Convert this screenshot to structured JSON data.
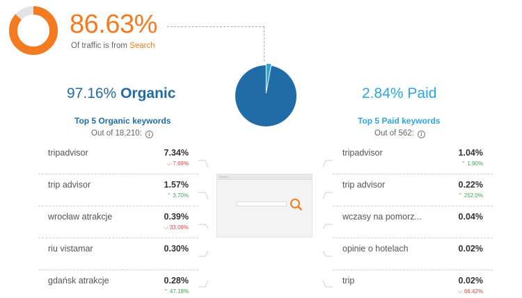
{
  "header": {
    "search_share": 0.8663,
    "percent": "86.63%",
    "subtitle_prefix": "Of traffic is from",
    "subtitle_source": "Search",
    "accent_color": "#f47b20"
  },
  "pie": {
    "organic_share": 0.9716,
    "paid_share": 0.0284,
    "organic_color": "#1f6ca6",
    "paid_color": "#2aa7e0"
  },
  "organic": {
    "percent": "97.16%",
    "label": "Organic",
    "keywords_title": "Top 5 Organic keywords",
    "out_of": "Out of 18,210:",
    "info_icon": "i",
    "items": [
      {
        "keyword": "tripadvisor",
        "value": "7.34%",
        "change": "7.69%",
        "direction": "down"
      },
      {
        "keyword": "trip advisor",
        "value": "1.57%",
        "change": "3.70%",
        "direction": "up"
      },
      {
        "keyword": "wrocław atrakcje",
        "value": "0.39%",
        "change": "33.09%",
        "direction": "down"
      },
      {
        "keyword": "riu vistamar",
        "value": "0.30%",
        "change": "",
        "direction": ""
      },
      {
        "keyword": "gdańsk atrakcje",
        "value": "0.28%",
        "change": "47.18%",
        "direction": "up"
      }
    ]
  },
  "paid": {
    "percent": "2.84%",
    "label": "Paid",
    "keywords_title": "Top 5 Paid keywords",
    "out_of": "Out of 562:",
    "info_icon": "i",
    "items": [
      {
        "keyword": "tripadvisor",
        "value": "1.04%",
        "change": "1.90%",
        "direction": "up"
      },
      {
        "keyword": "trip advisor",
        "value": "0.22%",
        "change": "252.0%",
        "direction": "up"
      },
      {
        "keyword": "wczasy na pomorz...",
        "value": "0.04%",
        "change": "",
        "direction": ""
      },
      {
        "keyword": "opinie o hotelach",
        "value": "0.02%",
        "change": "",
        "direction": ""
      },
      {
        "keyword": "trip",
        "value": "0.02%",
        "change": "66.42%",
        "direction": "down"
      }
    ]
  },
  "thumbnail": {
    "bar_text": "Search"
  }
}
